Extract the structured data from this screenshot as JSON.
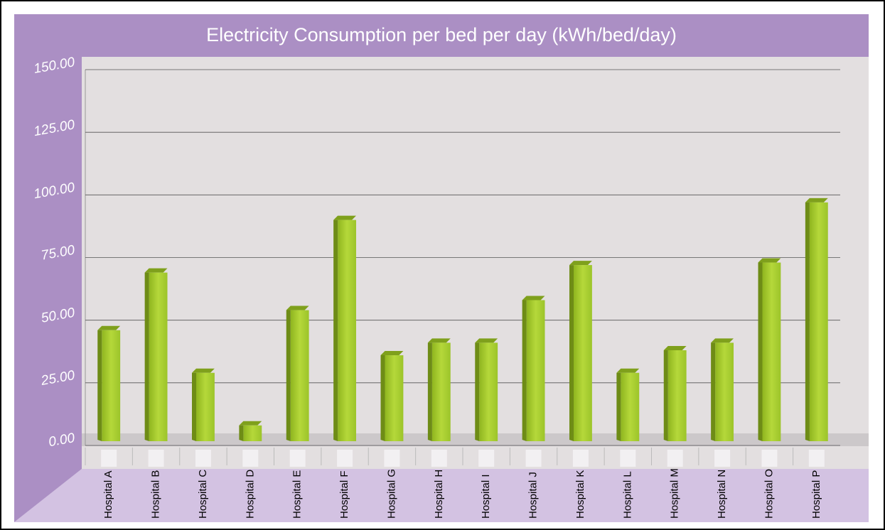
{
  "chart_data": {
    "type": "bar",
    "title": "Electricity Consumption per bed per day (kWh/bed/day)",
    "categories": [
      "Hospital A",
      "Hospital B",
      "Hospital C",
      "Hospital D",
      "Hospital E",
      "Hospital F",
      "Hospital G",
      "Hospital H",
      "Hospital I",
      "Hospital J",
      "Hospital K",
      "Hospital L",
      "Hospital M",
      "Hospital N",
      "Hospital O",
      "Hospital P"
    ],
    "values": [
      46,
      69,
      29,
      8,
      54,
      90,
      36,
      41,
      41,
      58,
      72,
      29,
      38,
      41,
      73,
      97
    ],
    "color": "#9cc42a",
    "ylim": [
      0,
      150
    ],
    "yticks": [
      {
        "value": 0,
        "label": "0.00"
      },
      {
        "value": 25,
        "label": "25.00"
      },
      {
        "value": 50,
        "label": "50.00"
      },
      {
        "value": 75,
        "label": "75.00"
      },
      {
        "value": 100,
        "label": "100.00"
      },
      {
        "value": 125,
        "label": "125.00"
      },
      {
        "value": 150,
        "label": "150.00"
      }
    ],
    "grid": true
  }
}
